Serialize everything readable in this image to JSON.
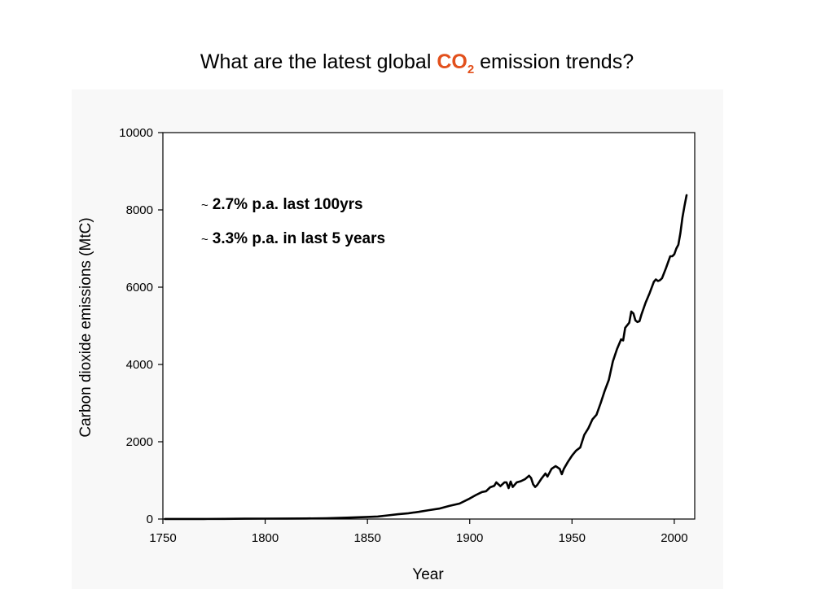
{
  "slide": {
    "title_pre": "What are the latest global",
    "title_co": "CO",
    "title_sub": "2",
    "title_post": "emission trends?",
    "accent_color": "#e2501c"
  },
  "chart_data": {
    "type": "line",
    "title": "",
    "xlabel": "Year",
    "ylabel": "Carbon dioxide emissions (MtC)",
    "xlim": [
      1750,
      2010
    ],
    "ylim": [
      0,
      10000
    ],
    "xticks": [
      1750,
      1800,
      1850,
      1900,
      1950,
      2000
    ],
    "yticks": [
      0,
      2000,
      4000,
      6000,
      8000,
      10000
    ],
    "grid": false,
    "annotations": [
      {
        "prefix": "~",
        "text": "2.7% p.a. last 100yrs"
      },
      {
        "prefix": "~",
        "text": "3.3% p.a. in last 5 years"
      }
    ],
    "series": [
      {
        "line_color": "#000000",
        "x": [
          1751,
          1760,
          1770,
          1780,
          1790,
          1800,
          1810,
          1820,
          1830,
          1840,
          1850,
          1855,
          1860,
          1865,
          1870,
          1875,
          1880,
          1885,
          1890,
          1895,
          1900,
          1903,
          1906,
          1908,
          1910,
          1912,
          1913,
          1915,
          1917,
          1918,
          1919,
          1920,
          1921,
          1923,
          1925,
          1927,
          1929,
          1930,
          1931,
          1932,
          1933,
          1935,
          1937,
          1938,
          1940,
          1942,
          1944,
          1945,
          1946,
          1948,
          1950,
          1952,
          1954,
          1956,
          1958,
          1960,
          1962,
          1964,
          1966,
          1968,
          1970,
          1972,
          1974,
          1975,
          1976,
          1978,
          1979,
          1980,
          1981,
          1982,
          1983,
          1984,
          1986,
          1988,
          1990,
          1991,
          1992,
          1993,
          1994,
          1996,
          1998,
          1999,
          2000,
          2001,
          2002,
          2003,
          2004,
          2005,
          2006
        ],
        "y": [
          3,
          3,
          3,
          5,
          8,
          10,
          12,
          15,
          22,
          35,
          55,
          65,
          95,
          125,
          150,
          185,
          230,
          270,
          340,
          400,
          530,
          620,
          700,
          720,
          820,
          860,
          950,
          850,
          950,
          950,
          800,
          970,
          830,
          950,
          980,
          1030,
          1120,
          1060,
          900,
          830,
          880,
          1040,
          1180,
          1100,
          1300,
          1370,
          1300,
          1160,
          1300,
          1480,
          1640,
          1770,
          1850,
          2180,
          2350,
          2580,
          2700,
          3000,
          3320,
          3600,
          4080,
          4400,
          4650,
          4620,
          4950,
          5080,
          5370,
          5320,
          5140,
          5100,
          5120,
          5300,
          5600,
          5850,
          6140,
          6200,
          6160,
          6180,
          6230,
          6500,
          6800,
          6800,
          6850,
          7000,
          7100,
          7400,
          7800,
          8100,
          8380
        ]
      }
    ]
  }
}
